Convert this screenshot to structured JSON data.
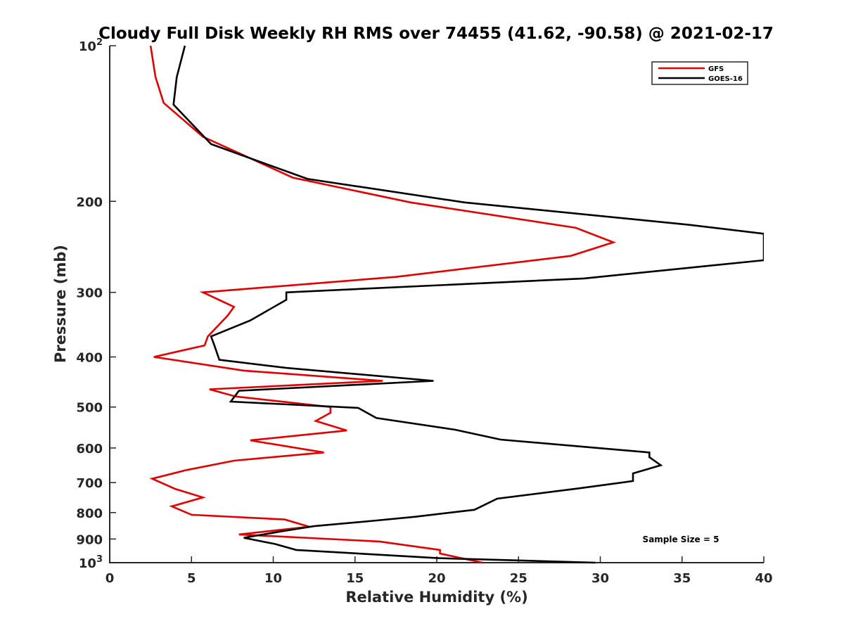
{
  "chart_data": {
    "type": "line",
    "title": "Cloudy Full Disk Weekly RH RMS over 74455 (41.62, -90.58) @ 2021-02-17",
    "xlabel": "Relative Humidity (%)",
    "ylabel": "Pressure (mb)",
    "xlim": [
      0,
      40
    ],
    "ylim": [
      100,
      1000
    ],
    "yscale": "log",
    "y_reversed": true,
    "x_ticks": [
      "0",
      "5",
      "10",
      "15",
      "20",
      "25",
      "30",
      "35",
      "40"
    ],
    "y_ticks": [
      {
        "value": 100,
        "base": "10",
        "exp": "2"
      },
      {
        "value": 200,
        "label": "200"
      },
      {
        "value": 300,
        "label": "300"
      },
      {
        "value": 400,
        "label": "400"
      },
      {
        "value": 500,
        "label": "500"
      },
      {
        "value": 600,
        "label": "600"
      },
      {
        "value": 700,
        "label": "700"
      },
      {
        "value": 800,
        "label": "800"
      },
      {
        "value": 900,
        "label": "900"
      },
      {
        "value": 1000,
        "base": "10",
        "exp": "3"
      }
    ],
    "legend_position": "top-right",
    "grid": false,
    "annotation": "Sample Size = 5",
    "series": [
      {
        "name": "GFS",
        "color": "#e00000",
        "points": [
          [
            2.5,
            100
          ],
          [
            2.8,
            115
          ],
          [
            3.3,
            129
          ],
          [
            5.7,
            150
          ],
          [
            11.2,
            180
          ],
          [
            18.4,
            201
          ],
          [
            28.5,
            225
          ],
          [
            30.8,
            240
          ],
          [
            28.2,
            255
          ],
          [
            17.5,
            280
          ],
          [
            5.7,
            300
          ],
          [
            7.6,
            320
          ],
          [
            7.2,
            333
          ],
          [
            6.0,
            365
          ],
          [
            5.8,
            380
          ],
          [
            2.7,
            400
          ],
          [
            8.2,
            425
          ],
          [
            16.7,
            445
          ],
          [
            6.1,
            462
          ],
          [
            7.7,
            477
          ],
          [
            13.5,
            500
          ],
          [
            13.5,
            513
          ],
          [
            12.6,
            532
          ],
          [
            14.5,
            555
          ],
          [
            8.6,
            580
          ],
          [
            13.1,
            612
          ],
          [
            7.6,
            635
          ],
          [
            4.7,
            662
          ],
          [
            2.6,
            688
          ],
          [
            4.0,
            720
          ],
          [
            5.7,
            748
          ],
          [
            3.8,
            778
          ],
          [
            5.0,
            808
          ],
          [
            10.7,
            825
          ],
          [
            12.2,
            852
          ],
          [
            11.0,
            860
          ],
          [
            7.9,
            882
          ],
          [
            16.5,
            910
          ],
          [
            20.2,
            945
          ],
          [
            20.2,
            960
          ],
          [
            22.8,
            1000
          ]
        ]
      },
      {
        "name": "GOES-16",
        "color": "#000000",
        "points": [
          [
            4.6,
            100
          ],
          [
            4.1,
            115
          ],
          [
            3.9,
            130
          ],
          [
            6.2,
            155
          ],
          [
            12.1,
            181
          ],
          [
            21.7,
            201
          ],
          [
            35.4,
            222
          ],
          [
            40.0,
            231
          ],
          [
            40.0,
            260
          ],
          [
            29.0,
            282
          ],
          [
            10.8,
            300
          ],
          [
            10.8,
            310
          ],
          [
            8.6,
            340
          ],
          [
            6.2,
            365
          ],
          [
            6.4,
            380
          ],
          [
            6.7,
            405
          ],
          [
            10.8,
            420
          ],
          [
            19.8,
            445
          ],
          [
            7.9,
            465
          ],
          [
            7.4,
            488
          ],
          [
            15.2,
            502
          ],
          [
            16.3,
            525
          ],
          [
            21.1,
            553
          ],
          [
            23.9,
            578
          ],
          [
            33.0,
            612
          ],
          [
            33.0,
            625
          ],
          [
            33.7,
            648
          ],
          [
            32.0,
            672
          ],
          [
            32.0,
            695
          ],
          [
            28.7,
            718
          ],
          [
            23.7,
            752
          ],
          [
            22.3,
            790
          ],
          [
            18.7,
            815
          ],
          [
            16.1,
            830
          ],
          [
            12.5,
            850
          ],
          [
            10.5,
            870
          ],
          [
            8.2,
            895
          ],
          [
            10.1,
            920
          ],
          [
            11.4,
            945
          ],
          [
            20.1,
            980
          ],
          [
            29.7,
            1000
          ]
        ]
      }
    ]
  }
}
